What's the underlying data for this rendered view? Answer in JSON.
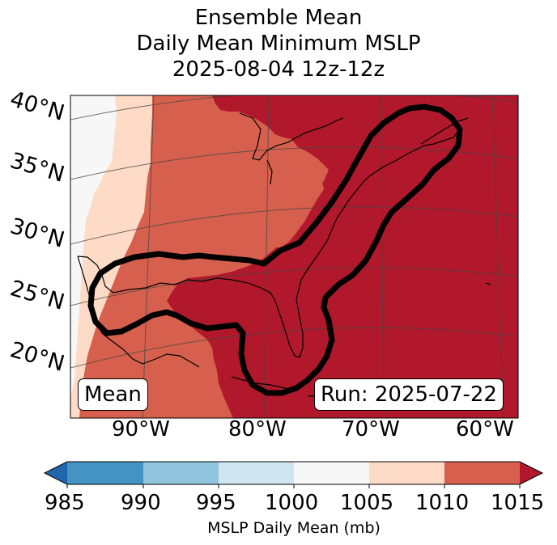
{
  "title": {
    "line1": "Ensemble Mean",
    "line2": "Daily Mean Minimum MSLP",
    "line3": "2025-08-04 12z-12z"
  },
  "map": {
    "lat_labels": [
      "40°N",
      "35°N",
      "30°N",
      "25°N",
      "20°N"
    ],
    "lon_labels": [
      "90°W",
      "80°W",
      "70°W",
      "60°W"
    ],
    "mean_box": "Mean",
    "run_box": "Run: 2025-07-22",
    "colors": {
      "below_985": "#2166ac",
      "b985_990": "#4393c3",
      "b990_995": "#92c5de",
      "b995_1000": "#d1e5f0",
      "b1000_1005": "#f7f7f7",
      "b1005_1010": "#fddbc7",
      "b1010_1015": "#d6604d",
      "above_1015": "#b2182b"
    }
  },
  "colorbar": {
    "ticks": [
      "985",
      "990",
      "995",
      "1000",
      "1005",
      "1010",
      "1015"
    ],
    "label": "MSLP Daily Mean (mb)"
  }
}
